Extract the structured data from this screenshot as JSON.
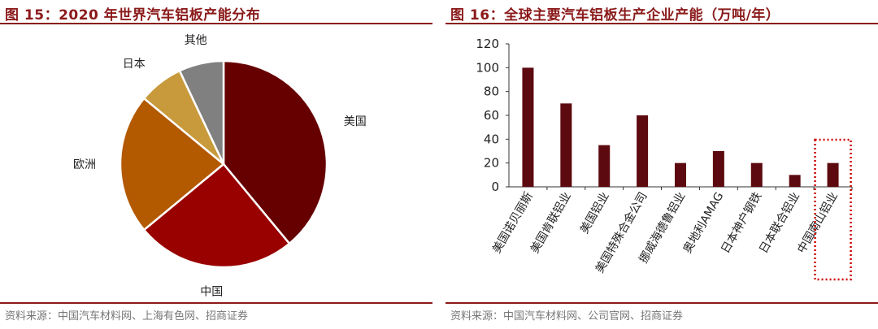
{
  "left": {
    "title": "图 15：2020 年世界汽车铝板产能分布",
    "source": "资料来源：中国汽车材料网、上海有色网、招商证券",
    "colors": {
      "rule": "#8b1a1a"
    }
  },
  "right": {
    "title": "图 16：全球主要汽车铝板生产企业产能（万吨/年）",
    "source": "资料来源：中国汽车材料网、公司官网、招商证券"
  },
  "chart_data": [
    {
      "type": "pie",
      "title": "2020 年世界汽车铝板产能分布",
      "labels": [
        "美国",
        "中国",
        "欧洲",
        "日本",
        "其他"
      ],
      "values": [
        39,
        25,
        22,
        7,
        7
      ],
      "colors": [
        "#660000",
        "#990000",
        "#b35900",
        "#c89a3c",
        "#808080"
      ],
      "start": "12 o'clock, clockwise"
    },
    {
      "type": "bar",
      "title": "全球主要汽车铝板生产企业产能（万吨/年）",
      "categories": [
        "美国诺贝丽斯",
        "美国肯联铝业",
        "美国铝业",
        "美国特殊合金公司",
        "挪威海德鲁铝业",
        "奥地利AMAG",
        "日本神户钢铁",
        "日本联合铝业",
        "中国南山铝业"
      ],
      "values": [
        100,
        70,
        35,
        60,
        20,
        30,
        20,
        10,
        20
      ],
      "ylim": [
        0,
        120
      ],
      "yticks": [
        0,
        20,
        40,
        60,
        80,
        100,
        120
      ],
      "bar_color": "#5c0a0f",
      "highlight": "中国南山铝业",
      "highlight_color": "#cc0000",
      "grid": false
    }
  ]
}
